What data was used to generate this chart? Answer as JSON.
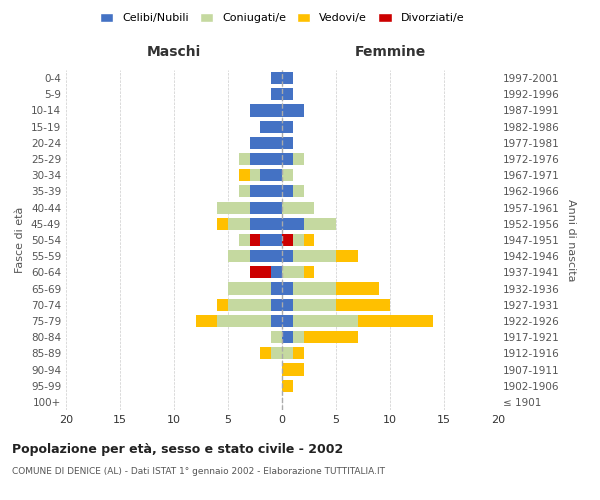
{
  "age_groups": [
    "100+",
    "95-99",
    "90-94",
    "85-89",
    "80-84",
    "75-79",
    "70-74",
    "65-69",
    "60-64",
    "55-59",
    "50-54",
    "45-49",
    "40-44",
    "35-39",
    "30-34",
    "25-29",
    "20-24",
    "15-19",
    "10-14",
    "5-9",
    "0-4"
  ],
  "birth_years": [
    "≤ 1901",
    "1902-1906",
    "1907-1911",
    "1912-1916",
    "1917-1921",
    "1922-1926",
    "1927-1931",
    "1932-1936",
    "1937-1941",
    "1942-1946",
    "1947-1951",
    "1952-1956",
    "1957-1961",
    "1962-1966",
    "1967-1971",
    "1972-1976",
    "1977-1981",
    "1982-1986",
    "1987-1991",
    "1992-1996",
    "1997-2001"
  ],
  "maschi": {
    "celibi": [
      0,
      0,
      0,
      0,
      0,
      1,
      1,
      1,
      1,
      3,
      2,
      3,
      3,
      3,
      2,
      3,
      3,
      2,
      3,
      1,
      1
    ],
    "coniugati": [
      0,
      0,
      0,
      1,
      1,
      5,
      4,
      4,
      1,
      2,
      2,
      2,
      3,
      1,
      1,
      1,
      0,
      0,
      0,
      0,
      0
    ],
    "vedovi": [
      0,
      0,
      0,
      1,
      0,
      2,
      1,
      0,
      0,
      0,
      0,
      1,
      0,
      0,
      1,
      0,
      0,
      0,
      0,
      0,
      0
    ],
    "divorziati": [
      0,
      0,
      0,
      0,
      0,
      0,
      0,
      0,
      2,
      0,
      1,
      0,
      0,
      0,
      0,
      0,
      0,
      0,
      0,
      0,
      0
    ]
  },
  "femmine": {
    "celibi": [
      0,
      0,
      0,
      0,
      1,
      1,
      1,
      1,
      0,
      1,
      0,
      2,
      0,
      1,
      0,
      1,
      1,
      1,
      2,
      1,
      1
    ],
    "coniugati": [
      0,
      0,
      0,
      1,
      1,
      6,
      4,
      4,
      2,
      4,
      2,
      3,
      3,
      1,
      1,
      1,
      0,
      0,
      0,
      0,
      0
    ],
    "vedovi": [
      0,
      1,
      2,
      1,
      5,
      7,
      5,
      4,
      1,
      2,
      1,
      0,
      0,
      0,
      0,
      0,
      0,
      0,
      0,
      0,
      0
    ],
    "divorziati": [
      0,
      0,
      0,
      0,
      0,
      0,
      0,
      0,
      0,
      0,
      1,
      0,
      0,
      0,
      0,
      0,
      0,
      0,
      0,
      0,
      0
    ]
  },
  "colors": {
    "celibi": "#4472c4",
    "coniugati": "#c5d9a0",
    "vedovi": "#ffc000",
    "divorziati": "#cc0000"
  },
  "xlim": [
    -20,
    20
  ],
  "title": "Popolazione per età, sesso e stato civile - 2002",
  "subtitle": "COMUNE DI DENICE (AL) - Dati ISTAT 1° gennaio 2002 - Elaborazione TUTTITALIA.IT",
  "ylabel_left": "Fasce di età",
  "ylabel_right": "Anni di nascita",
  "xlabel_left": "Maschi",
  "xlabel_right": "Femmine",
  "bg_color": "#ffffff",
  "grid_color": "#cccccc"
}
